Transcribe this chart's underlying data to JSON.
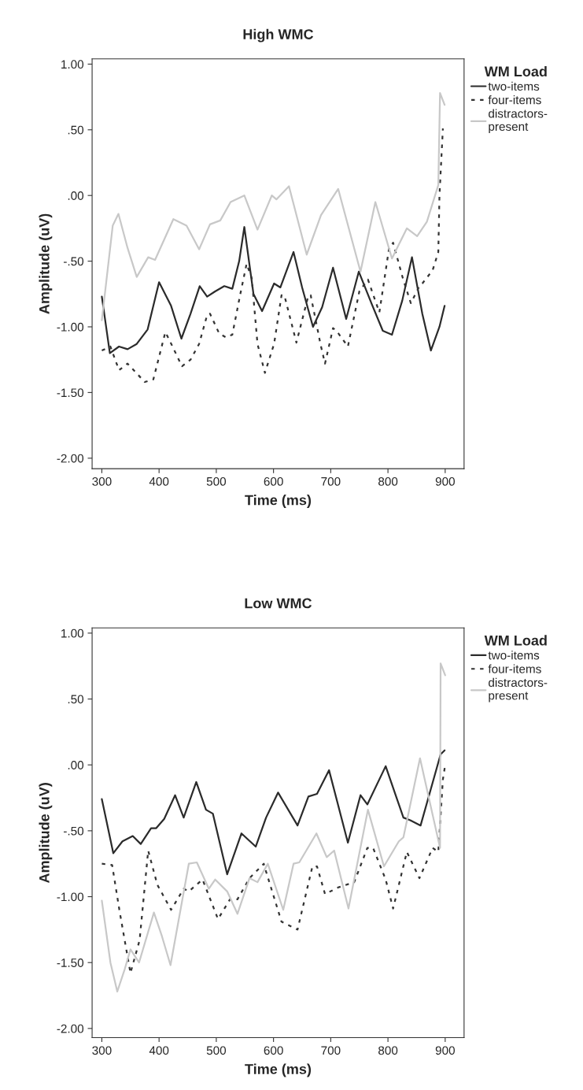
{
  "chart_data": [
    {
      "type": "line",
      "title": "High WMC",
      "xlabel": "Time (ms)",
      "ylabel": "Amplitude (uV)",
      "legend_title": "WM Load",
      "legend": "top right",
      "grid": false,
      "xlim": [
        283,
        933
      ],
      "xticks": [
        300,
        400,
        500,
        600,
        700,
        800,
        900
      ],
      "ylim": [
        -2.08,
        1.04
      ],
      "yticks": [
        {
          "value": 1.0,
          "label": "1.00"
        },
        {
          "value": 0.5,
          "label": ".50"
        },
        {
          "value": 0.0,
          "label": ".00"
        },
        {
          "value": -0.5,
          "label": "-.50"
        },
        {
          "value": -1.0,
          "label": "-1.00"
        },
        {
          "value": -1.5,
          "label": "-1.50"
        },
        {
          "value": -2.0,
          "label": "-2.00"
        }
      ],
      "series": [
        {
          "name": "two-items",
          "color": "#2b2b2b",
          "line_style": "solid",
          "x": [
            300,
            314,
            330,
            345,
            361,
            380,
            400,
            421,
            439,
            455,
            471,
            484,
            498,
            514,
            528,
            540,
            549,
            565,
            580,
            601,
            612,
            635,
            650,
            669,
            685,
            704,
            727,
            749,
            772,
            791,
            807,
            825,
            842,
            860,
            875,
            890,
            899
          ],
          "values": [
            -0.77,
            -1.2,
            -1.15,
            -1.17,
            -1.13,
            -1.02,
            -0.66,
            -0.84,
            -1.09,
            -0.9,
            -0.69,
            -0.77,
            -0.73,
            -0.69,
            -0.71,
            -0.5,
            -0.24,
            -0.75,
            -0.88,
            -0.67,
            -0.7,
            -0.43,
            -0.7,
            -1.0,
            -0.85,
            -0.55,
            -0.94,
            -0.58,
            -0.83,
            -1.03,
            -1.06,
            -0.8,
            -0.47,
            -0.9,
            -1.18,
            -1.0,
            -0.84
          ]
        },
        {
          "name": "four-items",
          "color": "#333333",
          "line_style": "dotted",
          "x": [
            300,
            315,
            330,
            345,
            360,
            375,
            390,
            411,
            418,
            440,
            455,
            470,
            484,
            489,
            505,
            517,
            528,
            542,
            553,
            562,
            572,
            585,
            601,
            614,
            619,
            640,
            661,
            665,
            682,
            690,
            704,
            710,
            730,
            750,
            765,
            785,
            802,
            809,
            826,
            840,
            855,
            860,
            878,
            888,
            890,
            896
          ],
          "values": [
            -1.18,
            -1.15,
            -1.33,
            -1.28,
            -1.35,
            -1.42,
            -1.4,
            -1.04,
            -1.1,
            -1.3,
            -1.25,
            -1.13,
            -0.91,
            -0.9,
            -1.05,
            -1.08,
            -1.06,
            -0.75,
            -0.52,
            -0.63,
            -1.13,
            -1.35,
            -1.13,
            -0.76,
            -0.76,
            -1.12,
            -0.76,
            -0.76,
            -1.13,
            -1.28,
            -1.01,
            -1.03,
            -1.15,
            -0.73,
            -0.64,
            -0.89,
            -0.4,
            -0.36,
            -0.63,
            -0.82,
            -0.69,
            -0.67,
            -0.57,
            -0.43,
            0.0,
            0.51
          ]
        },
        {
          "name": "distractors-\npresent",
          "color": "#c8c8c8",
          "line_style": "solid",
          "x": [
            300,
            319,
            329,
            345,
            361,
            381,
            393,
            425,
            448,
            470,
            489,
            507,
            525,
            549,
            572,
            597,
            605,
            627,
            658,
            683,
            713,
            752,
            778,
            807,
            833,
            851,
            868,
            888,
            891,
            899
          ],
          "values": [
            -0.95,
            -0.23,
            -0.14,
            -0.4,
            -0.62,
            -0.47,
            -0.49,
            -0.18,
            -0.23,
            -0.41,
            -0.22,
            -0.19,
            -0.05,
            0.0,
            -0.26,
            0.0,
            -0.03,
            0.07,
            -0.45,
            -0.15,
            0.05,
            -0.58,
            -0.05,
            -0.48,
            -0.25,
            -0.31,
            -0.2,
            0.08,
            0.78,
            0.69
          ]
        }
      ]
    },
    {
      "type": "line",
      "title": "Low WMC",
      "xlabel": "Time (ms)",
      "ylabel": "Amplitude (uV)",
      "legend_title": "WM Load",
      "legend": "top right",
      "grid": false,
      "xlim": [
        283,
        933
      ],
      "xticks": [
        300,
        400,
        500,
        600,
        700,
        800,
        900
      ],
      "ylim": [
        -2.07,
        1.04
      ],
      "yticks": [
        {
          "value": 1.0,
          "label": "1.00"
        },
        {
          "value": 0.5,
          "label": ".50"
        },
        {
          "value": 0.0,
          "label": ".00"
        },
        {
          "value": -0.5,
          "label": "-.50"
        },
        {
          "value": -1.0,
          "label": "-1.00"
        },
        {
          "value": -1.5,
          "label": "-1.50"
        },
        {
          "value": -2.0,
          "label": "-2.00"
        }
      ],
      "series": [
        {
          "name": "two-items",
          "color": "#2b2b2b",
          "line_style": "solid",
          "x": [
            300,
            320,
            336,
            354,
            368,
            386,
            395,
            409,
            428,
            443,
            465,
            482,
            494,
            519,
            544,
            569,
            587,
            608,
            642,
            661,
            676,
            697,
            730,
            752,
            764,
            796,
            827,
            839,
            857,
            892,
            899
          ],
          "values": [
            -0.26,
            -0.67,
            -0.58,
            -0.54,
            -0.6,
            -0.48,
            -0.48,
            -0.41,
            -0.23,
            -0.4,
            -0.13,
            -0.34,
            -0.37,
            -0.83,
            -0.52,
            -0.62,
            -0.4,
            -0.21,
            -0.46,
            -0.24,
            -0.22,
            -0.04,
            -0.59,
            -0.23,
            -0.3,
            -0.01,
            -0.4,
            -0.42,
            -0.46,
            0.08,
            0.11
          ]
        },
        {
          "name": "four-items",
          "color": "#333333",
          "line_style": "dotted",
          "x": [
            300,
            318,
            331,
            350,
            366,
            381,
            397,
            421,
            443,
            452,
            476,
            503,
            524,
            537,
            558,
            583,
            587,
            614,
            642,
            668,
            676,
            690,
            713,
            741,
            764,
            774,
            796,
            809,
            833,
            855,
            878,
            888,
            896,
            900
          ],
          "values": [
            -0.75,
            -0.76,
            -1.11,
            -1.58,
            -1.33,
            -0.65,
            -0.91,
            -1.1,
            -0.94,
            -0.96,
            -0.87,
            -1.17,
            -1.02,
            -1.02,
            -0.86,
            -0.75,
            -0.81,
            -1.19,
            -1.25,
            -0.77,
            -0.77,
            -0.98,
            -0.93,
            -0.89,
            -0.63,
            -0.63,
            -0.87,
            -1.09,
            -0.66,
            -0.86,
            -0.63,
            -0.66,
            -0.11,
            0.0
          ]
        },
        {
          "name": "distractors-\npresent",
          "color": "#c8c8c8",
          "line_style": "solid",
          "x": [
            300,
            315,
            327,
            340,
            350,
            365,
            391,
            405,
            420,
            452,
            466,
            487,
            498,
            519,
            537,
            558,
            572,
            590,
            617,
            635,
            645,
            675,
            693,
            706,
            731,
            765,
            793,
            819,
            827,
            856,
            891,
            892,
            900
          ],
          "values": [
            -1.03,
            -1.5,
            -1.72,
            -1.55,
            -1.4,
            -1.5,
            -1.12,
            -1.3,
            -1.52,
            -0.75,
            -0.74,
            -0.94,
            -0.87,
            -0.96,
            -1.13,
            -0.86,
            -0.89,
            -0.75,
            -1.1,
            -0.75,
            -0.74,
            -0.52,
            -0.7,
            -0.65,
            -1.09,
            -0.34,
            -0.77,
            -0.58,
            -0.55,
            0.05,
            -0.63,
            0.77,
            0.68
          ]
        }
      ]
    }
  ]
}
